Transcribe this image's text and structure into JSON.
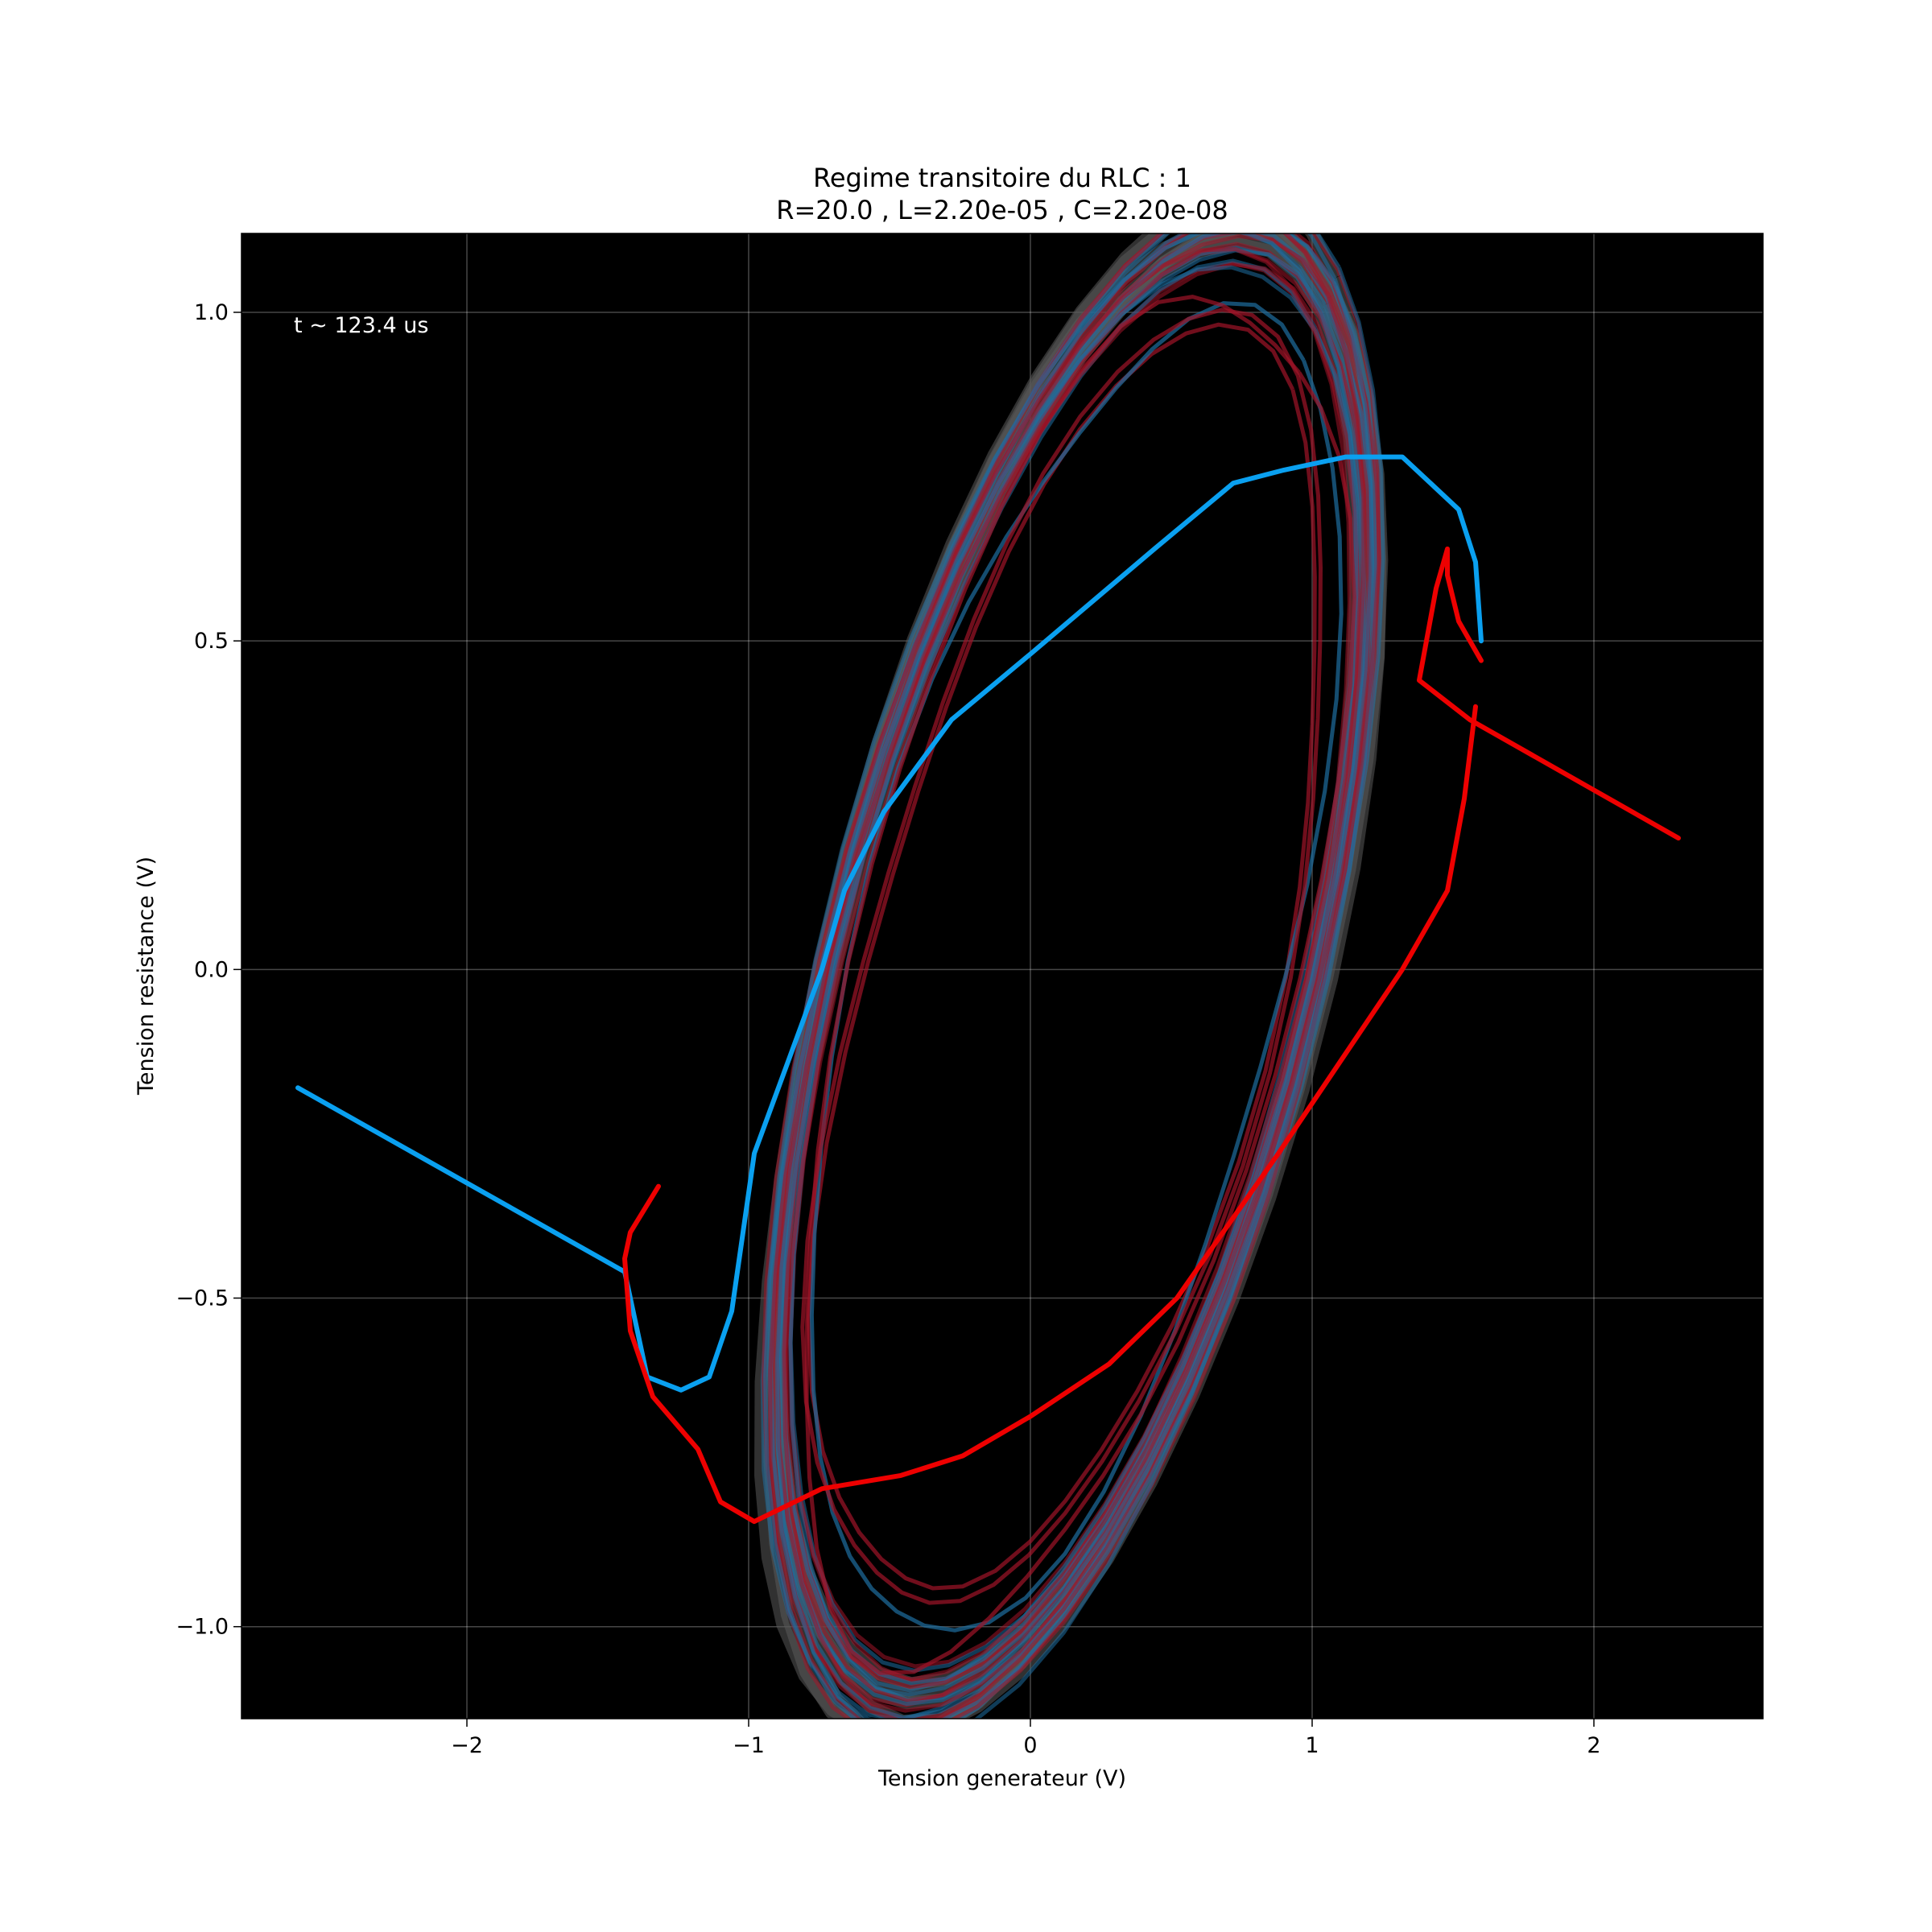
{
  "chart_data": {
    "type": "line",
    "title_lines": [
      "Regime transitoire du RLC : 1",
      "R=20.0 ,  L=2.20e-05 ,  C=2.20e-08"
    ],
    "xlabel": "Tension generateur (V)",
    "ylabel": "Tension resistance (V)",
    "xlim": [
      -2.8,
      2.6
    ],
    "ylim": [
      -1.14,
      1.12
    ],
    "xticks": [
      -2,
      -1,
      0,
      1,
      2
    ],
    "xtick_labels": [
      "−2",
      "−1",
      "0",
      "1",
      "2"
    ],
    "yticks": [
      -1.0,
      -0.5,
      0.0,
      0.5,
      1.0
    ],
    "ytick_labels": [
      "−1.0",
      "−0.5",
      "0.0",
      "0.5",
      "1.0"
    ],
    "grid": true,
    "background": "#000000",
    "annotation": "t ~ 123.4 us",
    "colors": {
      "blue": "#0aa0f0",
      "red": "#ee0000",
      "trail_blue": "#1e6ea0",
      "trail_red": "#a01428",
      "trail_gray": "#5a5a5a"
    },
    "steady_ellipse": {
      "center": [
        0.15,
        0.0
      ],
      "semi_major": 1.35,
      "semi_minor": 0.72,
      "angle_deg": 48.5
    },
    "series": [
      {
        "color_key": "blue",
        "points": [
          [
            -2.6,
            -0.18
          ],
          [
            -1.44,
            -0.46
          ],
          [
            -1.36,
            -0.62
          ],
          [
            -1.24,
            -0.64
          ],
          [
            -1.14,
            -0.62
          ],
          [
            -1.06,
            -0.52
          ],
          [
            -1.02,
            -0.4
          ],
          [
            -0.98,
            -0.28
          ],
          [
            -0.86,
            -0.14
          ],
          [
            -0.74,
            0.0
          ],
          [
            -0.66,
            0.12
          ],
          [
            -0.52,
            0.24
          ],
          [
            -0.28,
            0.38
          ],
          [
            0.0,
            0.48
          ],
          [
            0.22,
            0.56
          ],
          [
            0.44,
            0.64
          ],
          [
            0.72,
            0.74
          ],
          [
            0.9,
            0.76
          ],
          [
            1.12,
            0.78
          ],
          [
            1.32,
            0.78
          ],
          [
            1.42,
            0.74
          ],
          [
            1.52,
            0.7
          ],
          [
            1.58,
            0.62
          ],
          [
            1.6,
            0.5
          ]
        ]
      },
      {
        "color_key": "red",
        "points": [
          [
            2.3,
            0.2
          ],
          [
            1.56,
            0.38
          ],
          [
            1.38,
            0.44
          ],
          [
            1.44,
            0.58
          ],
          [
            1.48,
            0.64
          ],
          [
            1.48,
            0.6
          ],
          [
            1.52,
            0.53
          ],
          [
            1.6,
            0.47
          ]
        ]
      },
      {
        "color_key": "red",
        "points": [
          [
            1.58,
            0.4
          ],
          [
            1.54,
            0.26
          ],
          [
            1.48,
            0.12
          ],
          [
            1.32,
            0.0
          ],
          [
            1.1,
            -0.14
          ],
          [
            0.88,
            -0.28
          ],
          [
            0.52,
            -0.5
          ],
          [
            0.28,
            -0.6
          ],
          [
            0.0,
            -0.68
          ],
          [
            -0.24,
            -0.74
          ],
          [
            -0.46,
            -0.77
          ],
          [
            -0.74,
            -0.79
          ],
          [
            -0.98,
            -0.84
          ],
          [
            -1.1,
            -0.81
          ],
          [
            -1.18,
            -0.73
          ],
          [
            -1.34,
            -0.65
          ],
          [
            -1.42,
            -0.55
          ],
          [
            -1.44,
            -0.44
          ],
          [
            -1.42,
            -0.4
          ],
          [
            -1.32,
            -0.33
          ]
        ]
      }
    ]
  }
}
